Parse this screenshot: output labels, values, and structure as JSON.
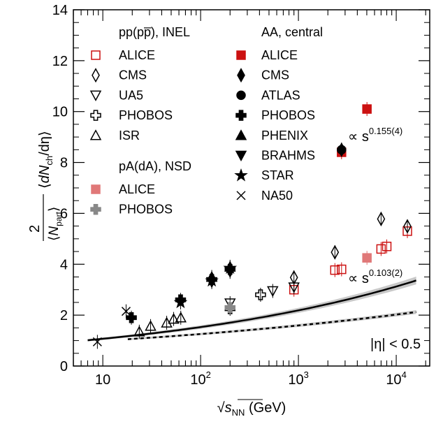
{
  "chart_data": {
    "type": "scatter",
    "xlog": true,
    "xlim": [
      5,
      22000
    ],
    "ylim": [
      0,
      14
    ],
    "x_ticks": [
      {
        "v": 10,
        "base": "10",
        "exp": ""
      },
      {
        "v": 100,
        "base": "10",
        "exp": "2"
      },
      {
        "v": 1000,
        "base": "10",
        "exp": "3"
      },
      {
        "v": 10000,
        "base": "10",
        "exp": "4"
      }
    ],
    "y_ticks": [
      "0",
      "2",
      "4",
      "6",
      "8",
      "10",
      "12",
      "14"
    ],
    "xlabel": {
      "pre": "√",
      "s": "s",
      "sub": "NN",
      "post": " (GeV)"
    },
    "ylabel": {
      "num": "2",
      "den_n": "N",
      "den_sub": "part",
      "rest_n": "dN",
      "rest_sub": "ch",
      "rest_end": "/dη"
    },
    "legend_headers": {
      "pp": "pp(pp̅), INEL",
      "pa": "pA(dA), NSD",
      "aa": "AA, central"
    },
    "annotations": {
      "aa_fit": {
        "pre": "∝ s",
        "exp": "0.155(4)"
      },
      "pp_fit": {
        "pre": "∝ s",
        "exp": "0.103(2)"
      },
      "eta_cut": "|η| < 0.5"
    },
    "fits": [
      {
        "name": "AA",
        "style": "solid",
        "a": 0.7497,
        "b": 0.155,
        "x_range": [
          7,
          16000
        ],
        "band": 0.045
      },
      {
        "name": "pp",
        "style": "dashed",
        "a": 0.7826,
        "b": 0.103,
        "x_range": [
          18,
          16000
        ],
        "band": 0.035
      }
    ],
    "series": [
      {
        "name": "ALICE",
        "group": "pp",
        "marker": "square-open",
        "color": "#cc1111",
        "points": [
          [
            900,
            3.0
          ],
          [
            2360,
            3.77
          ],
          [
            2760,
            3.8
          ],
          [
            7000,
            4.6
          ],
          [
            8000,
            4.7
          ],
          [
            13000,
            5.3
          ]
        ]
      },
      {
        "name": "CMS",
        "group": "pp",
        "marker": "diamond-open",
        "color": "#000000",
        "points": [
          [
            900,
            3.48
          ],
          [
            2360,
            4.47
          ],
          [
            7000,
            5.78
          ],
          [
            13000,
            5.49
          ]
        ]
      },
      {
        "name": "UA5",
        "group": "pp",
        "marker": "triangle-down-open",
        "color": "#000000",
        "points": [
          [
            200,
            2.47
          ],
          [
            546,
            2.95
          ],
          [
            900,
            3.1
          ]
        ]
      },
      {
        "name": "PHOBOS",
        "group": "pp",
        "marker": "cross-open",
        "color": "#000000",
        "points": [
          [
            200,
            2.25
          ],
          [
            410,
            2.8
          ]
        ]
      },
      {
        "name": "ISR",
        "group": "pp",
        "marker": "triangle-up-open",
        "color": "#000000",
        "points": [
          [
            23.6,
            1.35
          ],
          [
            30.8,
            1.57
          ],
          [
            45,
            1.7
          ],
          [
            53,
            1.85
          ],
          [
            62.7,
            1.9
          ]
        ]
      },
      {
        "name": "ALICE",
        "group": "pa",
        "marker": "square-filled",
        "color": "#e07878",
        "points": [
          [
            5020,
            4.25
          ]
        ]
      },
      {
        "name": "PHOBOS",
        "group": "pa",
        "marker": "cross-filled",
        "color": "#888888",
        "points": [
          [
            200,
            2.3
          ]
        ]
      },
      {
        "name": "ALICE",
        "group": "aa",
        "marker": "square-filled",
        "color": "#cc1111",
        "points": [
          [
            2760,
            8.4
          ],
          [
            5020,
            10.1
          ]
        ]
      },
      {
        "name": "CMS",
        "group": "aa",
        "marker": "diamond-filled",
        "color": "#000000",
        "points": [
          [
            2760,
            8.5
          ]
        ]
      },
      {
        "name": "ATLAS",
        "group": "aa",
        "marker": "circle-filled",
        "color": "#000000",
        "points": [
          [
            2760,
            8.5
          ]
        ]
      },
      {
        "name": "PHOBOS",
        "group": "aa",
        "marker": "cross-filled",
        "color": "#000000",
        "points": [
          [
            19.6,
            1.9
          ],
          [
            62.4,
            2.6
          ],
          [
            130,
            3.4
          ],
          [
            200,
            3.8
          ]
        ]
      },
      {
        "name": "PHENIX",
        "group": "aa",
        "marker": "triangle-up-filled",
        "color": "#000000",
        "points": [
          [
            130,
            3.5
          ],
          [
            200,
            3.9
          ]
        ]
      },
      {
        "name": "BRAHMS",
        "group": "aa",
        "marker": "triangle-down-filled",
        "color": "#000000",
        "points": [
          [
            130,
            3.3
          ],
          [
            200,
            3.7
          ]
        ]
      },
      {
        "name": "STAR",
        "group": "aa",
        "marker": "star-filled",
        "color": "#000000",
        "points": [
          [
            62.4,
            2.5
          ],
          [
            130,
            3.35
          ],
          [
            200,
            3.85
          ]
        ]
      },
      {
        "name": "NA50",
        "group": "aa",
        "marker": "x",
        "color": "#000000",
        "points": [
          [
            8.8,
            0.95
          ],
          [
            17.3,
            2.15
          ]
        ]
      }
    ]
  }
}
